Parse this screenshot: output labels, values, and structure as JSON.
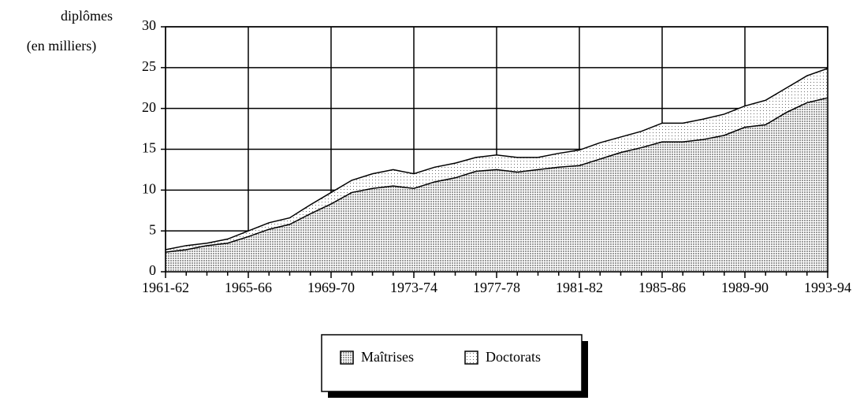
{
  "chart_data": {
    "type": "stacked_area",
    "ylabel": [
      "diplômes",
      "(en milliers)"
    ],
    "categories": [
      "1961-62",
      null,
      null,
      null,
      "1965-66",
      null,
      null,
      null,
      "1969-70",
      null,
      null,
      null,
      "1973-74",
      null,
      null,
      null,
      "1977-78",
      null,
      null,
      null,
      "1981-82",
      null,
      null,
      null,
      "1985-86",
      null,
      null,
      null,
      "1989-90",
      null,
      null,
      null,
      "1993-94"
    ],
    "series": [
      {
        "name": "Maîtrises",
        "color": "#9a9a9a",
        "values": [
          2.4,
          2.7,
          3.2,
          3.5,
          4.3,
          5.2,
          5.8,
          7.1,
          8.3,
          9.7,
          10.2,
          10.5,
          10.2,
          11.0,
          11.5,
          12.3,
          12.5,
          12.2,
          12.5,
          12.8,
          13.0,
          13.8,
          14.6,
          15.2,
          15.9,
          15.9,
          16.2,
          16.7,
          17.7,
          18.0,
          19.5,
          20.7,
          21.3
        ]
      },
      {
        "name": "Doctorats",
        "color": "#6a6a6a",
        "values": [
          0.3,
          0.5,
          0.3,
          0.5,
          0.7,
          0.8,
          0.8,
          1.1,
          1.4,
          1.5,
          1.8,
          2.0,
          1.8,
          1.8,
          1.8,
          1.7,
          1.8,
          1.8,
          1.5,
          1.7,
          1.9,
          2.0,
          1.9,
          2.0,
          2.3,
          2.3,
          2.5,
          2.6,
          2.6,
          3.0,
          3.0,
          3.3,
          3.6
        ]
      }
    ],
    "ylim": [
      0,
      30
    ],
    "yticks": [
      0,
      5,
      10,
      15,
      20,
      25,
      30
    ],
    "grid": true,
    "legend": "bottom"
  }
}
